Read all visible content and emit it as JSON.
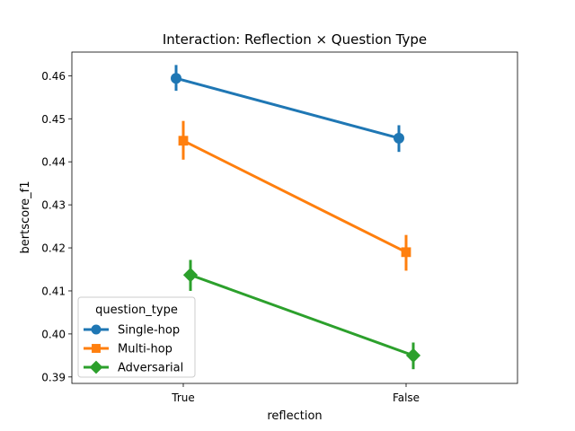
{
  "chart_data": {
    "type": "line",
    "title": "Interaction: Reflection × Question Type",
    "xlabel": "reflection",
    "ylabel": "bertscore_f1",
    "categories": [
      "True",
      "False"
    ],
    "ylim": [
      0.3885,
      0.4655
    ],
    "yticks": [
      "0.39",
      "0.40",
      "0.41",
      "0.42",
      "0.43",
      "0.44",
      "0.45",
      "0.46"
    ],
    "ytick_values": [
      0.39,
      0.4,
      0.41,
      0.42,
      0.43,
      0.44,
      0.45,
      0.46
    ],
    "grid": false,
    "legend": {
      "title": "question_type",
      "placement": "lower-left"
    },
    "series": [
      {
        "name": "Single-hop",
        "color": "#1f77b4",
        "marker": "circle",
        "values": [
          0.4594,
          0.4455
        ],
        "ci_low": [
          0.4565,
          0.4423
        ],
        "ci_high": [
          0.4625,
          0.4485
        ]
      },
      {
        "name": "Multi-hop",
        "color": "#ff7f0e",
        "marker": "square",
        "values": [
          0.4449,
          0.419
        ],
        "ci_low": [
          0.4405,
          0.4147
        ],
        "ci_high": [
          0.4495,
          0.423
        ]
      },
      {
        "name": "Adversarial",
        "color": "#2ca02c",
        "marker": "diamond",
        "values": [
          0.4137,
          0.395
        ],
        "ci_low": [
          0.41,
          0.3918
        ],
        "ci_high": [
          0.4172,
          0.398
        ]
      }
    ]
  }
}
